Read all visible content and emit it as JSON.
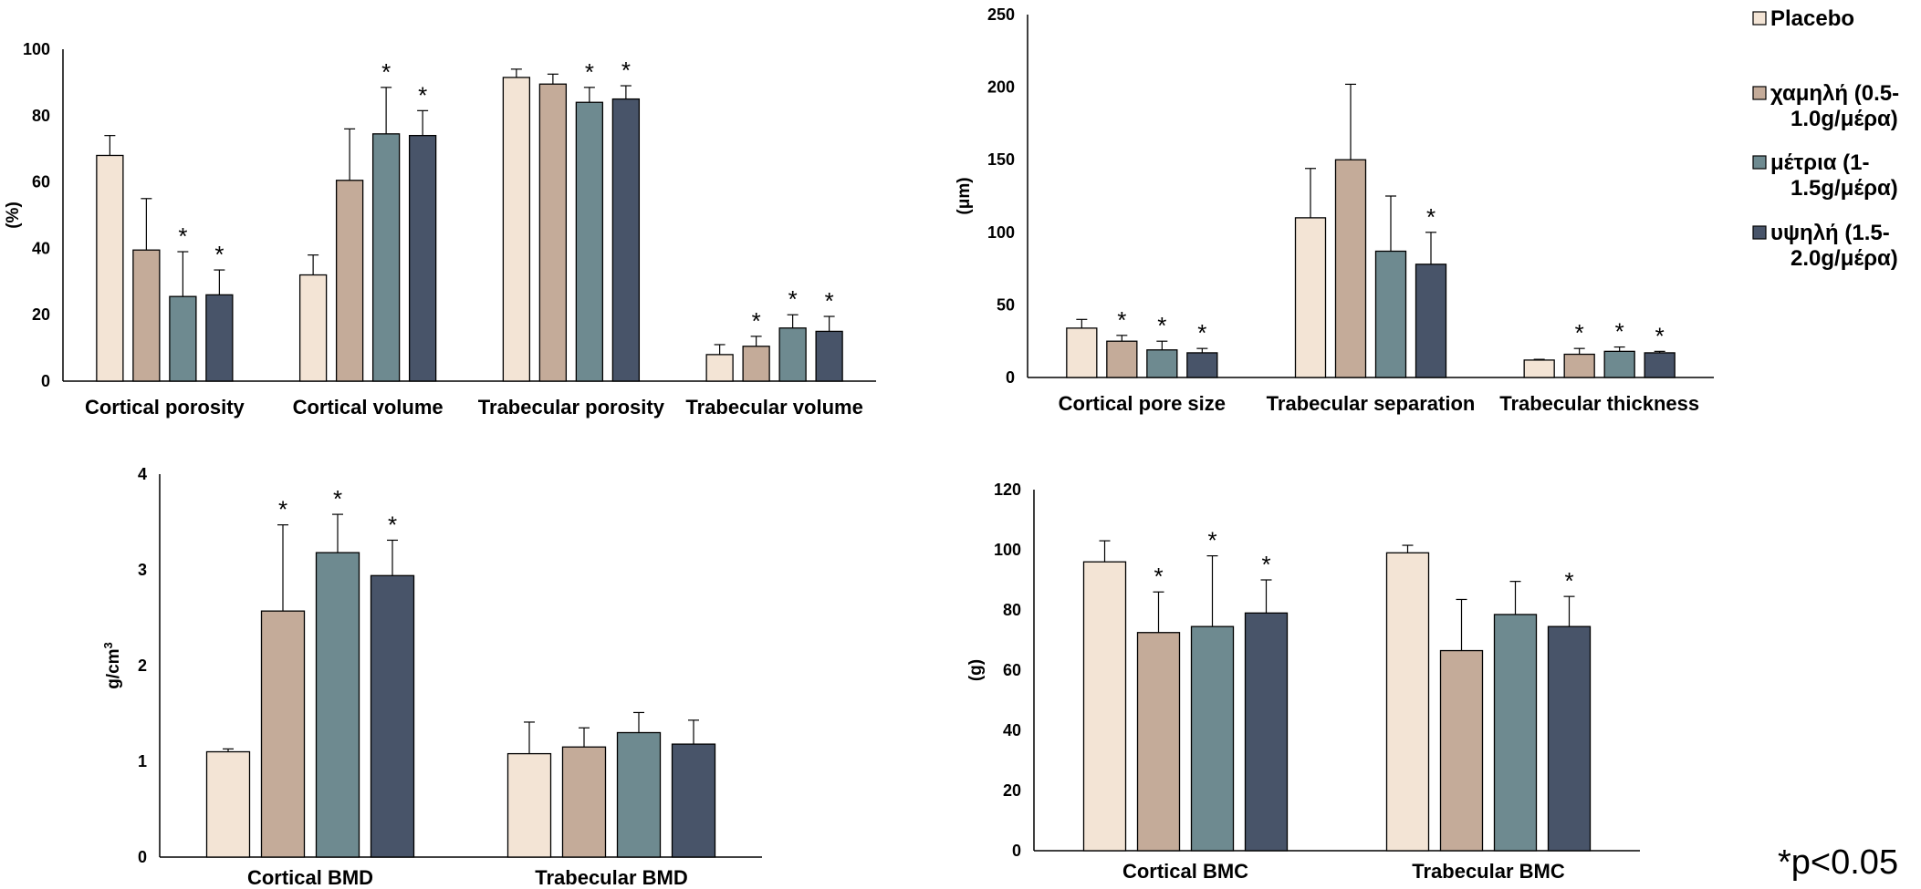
{
  "legend": {
    "items": [
      {
        "label_lines": [
          "Placebo"
        ],
        "color": "#f3e4d5"
      },
      {
        "label_lines": [
          "χαμηλή (0.5-",
          "1.0g/μέρα)"
        ],
        "color": "#c4ab99"
      },
      {
        "label_lines": [
          "μέτρια (1-",
          "1.5g/μέρα)"
        ],
        "color": "#6e8a90"
      },
      {
        "label_lines": [
          "υψηλή (1.5-",
          "2.0g/μέρα)"
        ],
        "color": "#485469"
      }
    ]
  },
  "footnote": "*p<0.05",
  "chart_data": [
    {
      "type": "bar",
      "ylabel": "(%)",
      "ylim": [
        0,
        100
      ],
      "yticks": [
        0,
        20,
        40,
        60,
        80,
        100
      ],
      "categories": [
        "Cortical porosity",
        "Cortical volume",
        "Trabecular porosity",
        "Trabecular volume"
      ],
      "series": [
        {
          "name": "Placebo",
          "values": [
            68,
            32,
            91.5,
            8
          ],
          "errors": [
            6,
            6,
            2.5,
            3
          ],
          "sig": [
            false,
            false,
            false,
            false
          ]
        },
        {
          "name": "χαμηλή (0.5-1.0g/μέρα)",
          "values": [
            39.5,
            60.5,
            89.5,
            10.5
          ],
          "errors": [
            15.5,
            15.5,
            3,
            3
          ],
          "sig": [
            false,
            false,
            false,
            true
          ]
        },
        {
          "name": "μέτρια (1-1.5g/μέρα)",
          "values": [
            25.5,
            74.5,
            84,
            16
          ],
          "errors": [
            13.5,
            14,
            4.5,
            4
          ],
          "sig": [
            true,
            true,
            true,
            true
          ]
        },
        {
          "name": "υψηλή (1.5-2.0g/μέρα)",
          "values": [
            26,
            74,
            85,
            15
          ],
          "errors": [
            7.5,
            7.5,
            4,
            4.5
          ],
          "sig": [
            true,
            true,
            true,
            true
          ]
        }
      ]
    },
    {
      "type": "bar",
      "ylabel": "(μm)",
      "ylim": [
        0,
        250
      ],
      "yticks": [
        0,
        50,
        100,
        150,
        200,
        250
      ],
      "categories": [
        "Cortical pore size",
        "Trabecular separation",
        "Trabecular thickness"
      ],
      "series": [
        {
          "name": "Placebo",
          "values": [
            34,
            110,
            12
          ],
          "errors": [
            6,
            34,
            0.5
          ],
          "sig": [
            false,
            false,
            false
          ]
        },
        {
          "name": "χαμηλή (0.5-1.0g/μέρα)",
          "values": [
            25,
            150,
            16
          ],
          "errors": [
            4,
            52,
            4
          ],
          "sig": [
            true,
            false,
            true
          ]
        },
        {
          "name": "μέτρια (1-1.5g/μέρα)",
          "values": [
            19,
            87,
            18
          ],
          "errors": [
            6,
            38,
            3
          ],
          "sig": [
            true,
            false,
            true
          ]
        },
        {
          "name": "υψηλή (1.5-2.0g/μέρα)",
          "values": [
            17,
            78,
            17
          ],
          "errors": [
            3,
            22,
            1
          ],
          "sig": [
            true,
            true,
            true
          ]
        }
      ]
    },
    {
      "type": "bar",
      "ylabel": "g/cm3",
      "ylim": [
        0,
        4
      ],
      "yticks": [
        0,
        1,
        2,
        3,
        4
      ],
      "categories": [
        "Cortical BMD",
        "Trabecular BMD"
      ],
      "series": [
        {
          "name": "Placebo",
          "values": [
            1.1,
            1.08
          ],
          "errors": [
            0.03,
            0.33
          ],
          "sig": [
            false,
            false
          ]
        },
        {
          "name": "χαμηλή (0.5-1.0g/μέρα)",
          "values": [
            2.57,
            1.15
          ],
          "errors": [
            0.9,
            0.2
          ],
          "sig": [
            true,
            false
          ]
        },
        {
          "name": "μέτρια (1-1.5g/μέρα)",
          "values": [
            3.18,
            1.3
          ],
          "errors": [
            0.4,
            0.21
          ],
          "sig": [
            true,
            false
          ]
        },
        {
          "name": "υψηλή (1.5-2.0g/μέρα)",
          "values": [
            2.94,
            1.18
          ],
          "errors": [
            0.37,
            0.25
          ],
          "sig": [
            true,
            false
          ]
        }
      ]
    },
    {
      "type": "bar",
      "ylabel": "(g)",
      "ylim": [
        0,
        120
      ],
      "yticks": [
        0,
        20,
        40,
        60,
        80,
        100,
        120
      ],
      "categories": [
        "Cortical BMC",
        "Trabecular BMC"
      ],
      "series": [
        {
          "name": "Placebo",
          "values": [
            96,
            99
          ],
          "errors": [
            7,
            2.5
          ],
          "sig": [
            false,
            false
          ]
        },
        {
          "name": "χαμηλή (0.5-1.0g/μέρα)",
          "values": [
            72.5,
            66.5
          ],
          "errors": [
            13.5,
            17
          ],
          "sig": [
            true,
            false
          ]
        },
        {
          "name": "μέτρια (1-1.5g/μέρα)",
          "values": [
            74.5,
            78.5
          ],
          "errors": [
            23.5,
            11
          ],
          "sig": [
            true,
            false
          ]
        },
        {
          "name": "υψηλή (1.5-2.0g/μέρα)",
          "values": [
            79,
            74.5
          ],
          "errors": [
            11,
            10
          ],
          "sig": [
            true,
            true
          ]
        }
      ]
    }
  ]
}
